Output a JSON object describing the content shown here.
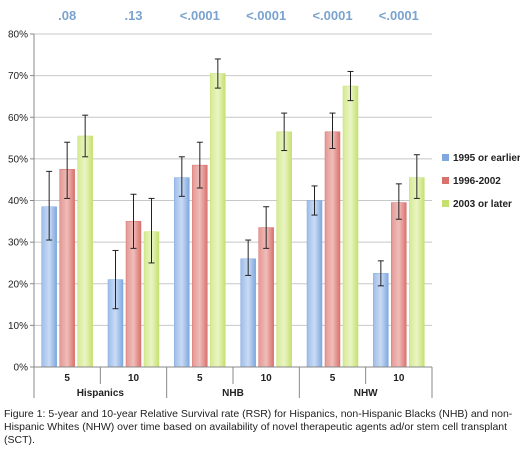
{
  "chart_data": {
    "type": "bar",
    "categories": [
      "5",
      "10",
      "5",
      "10",
      "5",
      "10"
    ],
    "groups": [
      "Hispanics",
      "NHB",
      "NHW"
    ],
    "p_values": [
      ".08",
      ".13",
      "<.0001",
      "<.0001",
      "<.0001",
      "<.0001"
    ],
    "series": [
      {
        "name": "1995 or earlier",
        "values": [
          38.5,
          21,
          45.5,
          26,
          40,
          22.5
        ],
        "err_low": [
          30.5,
          14,
          41,
          22,
          36.5,
          19.5
        ],
        "err_high": [
          47,
          28,
          50.5,
          30.5,
          43.5,
          25.5
        ]
      },
      {
        "name": "1996-2002",
        "values": [
          47.5,
          35,
          48.5,
          33.5,
          56.5,
          39.5
        ],
        "err_low": [
          40.5,
          28.5,
          43,
          28.5,
          52.5,
          35.5
        ],
        "err_high": [
          54,
          41.5,
          54,
          38.5,
          61,
          44
        ]
      },
      {
        "name": "2003 or later",
        "values": [
          55.5,
          32.5,
          70.5,
          56.5,
          67.5,
          45.5
        ],
        "err_low": [
          50.5,
          25,
          67,
          52,
          64,
          40.5
        ],
        "err_high": [
          60.5,
          40.5,
          74,
          61,
          71,
          51
        ]
      }
    ],
    "colors": [
      "#7fa8df",
      "#d9716d",
      "#c6e070"
    ],
    "ylim": [
      0,
      80
    ],
    "yticks": [
      "0%",
      "10%",
      "20%",
      "30%",
      "40%",
      "50%",
      "60%",
      "70%",
      "80%"
    ],
    "grid": true,
    "legend": "right"
  },
  "caption": "Figure 1: 5-year and 10-year Relative Survival rate (RSR) for Hispanics, non-Hispanic Blacks (NHB) and non-Hispanic Whites (NHW) over time based on availability of novel therapeutic agents ad/or stem cell transplant (SCT)."
}
